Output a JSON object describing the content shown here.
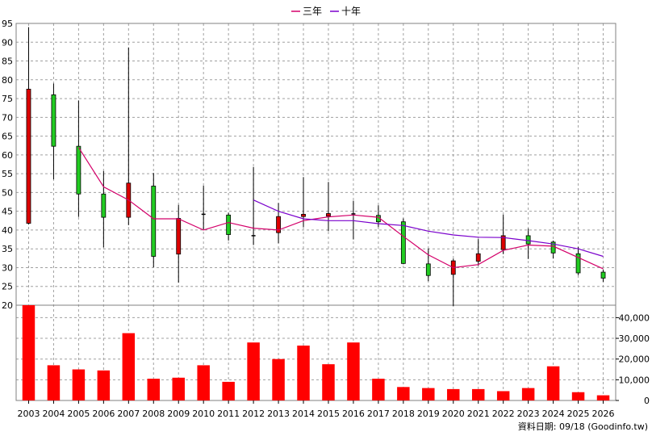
{
  "chart_data": {
    "type": "candlestick+bar",
    "legend": [
      {
        "name": "三年",
        "color": "#d4006a"
      },
      {
        "name": "十年",
        "color": "#7a00cc"
      }
    ],
    "legend_position": "top-center",
    "grid": true,
    "categories": [
      "2003",
      "2004",
      "2005",
      "2006",
      "2007",
      "2008",
      "2009",
      "2010",
      "2011",
      "2012",
      "2013",
      "2014",
      "2015",
      "2016",
      "2017",
      "2018",
      "2019",
      "2020",
      "2021",
      "2022",
      "2023",
      "2024",
      "2025",
      "2026"
    ],
    "price_axis": {
      "ylim": [
        20,
        95
      ],
      "ticks": [
        "20",
        "25",
        "30",
        "35",
        "40",
        "45",
        "50",
        "55",
        "60",
        "65",
        "70",
        "75",
        "80",
        "85",
        "90",
        "95"
      ]
    },
    "volume_axis": {
      "ylim": [
        0,
        46000
      ],
      "ticks": [
        {
          "value": 0,
          "label": "0"
        },
        {
          "value": 10000,
          "label": "10,000"
        },
        {
          "value": 20000,
          "label": "20,000"
        },
        {
          "value": 30000,
          "label": "30,000"
        },
        {
          "value": 40000,
          "label": "40,000"
        }
      ]
    },
    "candles": [
      {
        "year": "2003",
        "open": 41.8,
        "close": 77.5,
        "high": 94,
        "low": 41.5
      },
      {
        "year": "2004",
        "open": 76,
        "close": 62.3,
        "high": 79,
        "low": 53.5
      },
      {
        "year": "2005",
        "open": 62.3,
        "close": 49.6,
        "high": 74.5,
        "low": 43.5
      },
      {
        "year": "2006",
        "open": 49.6,
        "close": 43.4,
        "high": 55.7,
        "low": 35.4
      },
      {
        "year": "2007",
        "open": 43.4,
        "close": 52.5,
        "high": 88.6,
        "low": 41.3
      },
      {
        "year": "2008",
        "open": 51.7,
        "close": 33,
        "high": 55.2,
        "low": 30.1
      },
      {
        "year": "2009",
        "open": 33.6,
        "close": 43.1,
        "high": 46.7,
        "low": 26
      },
      {
        "year": "2010",
        "open": 44.2,
        "close": 44.2,
        "high": 51.8,
        "low": 40.2
      },
      {
        "year": "2011",
        "open": 44,
        "close": 38.8,
        "high": 44.6,
        "low": 37.2
      },
      {
        "year": "2012",
        "open": 38.5,
        "close": 38.5,
        "high": 56.8,
        "low": 36
      },
      {
        "year": "2013",
        "open": 39.3,
        "close": 43.6,
        "high": 47.2,
        "low": 36.5
      },
      {
        "year": "2014",
        "open": 43.6,
        "close": 44.2,
        "high": 54.1,
        "low": 40.8
      },
      {
        "year": "2015",
        "open": 43.7,
        "close": 44.4,
        "high": 52.8,
        "low": 39.7
      },
      {
        "year": "2016",
        "open": 44.3,
        "close": 44.3,
        "high": 47.8,
        "low": 37.5
      },
      {
        "year": "2017",
        "open": 43.9,
        "close": 42.2,
        "high": 46.6,
        "low": 40.8
      },
      {
        "year": "2018",
        "open": 42.2,
        "close": 31.1,
        "high": 43.1,
        "low": 30.9
      },
      {
        "year": "2019",
        "open": 31,
        "close": 27.9,
        "high": 35.1,
        "low": 26.4
      },
      {
        "year": "2020",
        "open": 28.2,
        "close": 31.8,
        "high": 32.4,
        "low": 19.8
      },
      {
        "year": "2021",
        "open": 31.7,
        "close": 33.7,
        "high": 37.6,
        "low": 30.5
      },
      {
        "year": "2022",
        "open": 34.8,
        "close": 38.5,
        "high": 44.1,
        "low": 33.6
      },
      {
        "year": "2023",
        "open": 38.5,
        "close": 36.3,
        "high": 40.4,
        "low": 32.3
      },
      {
        "year": "2024",
        "open": 36.8,
        "close": 33.9,
        "high": 37.2,
        "low": 32.4
      },
      {
        "year": "2025",
        "open": 33.7,
        "close": 28.6,
        "high": 35.5,
        "low": 28
      },
      {
        "year": "2026",
        "open": 28.8,
        "close": 27.2,
        "high": 29.5,
        "low": 26.2
      }
    ],
    "series": [
      {
        "name": "三年",
        "color": "#d4006a",
        "values": [
          null,
          null,
          62,
          51.5,
          48,
          43,
          43,
          40,
          42,
          40.5,
          40,
          42.5,
          43.5,
          44,
          43.4,
          38.3,
          33.4,
          30,
          30.8,
          34.6,
          36,
          35.7,
          32.7,
          29.7
        ]
      },
      {
        "name": "十年",
        "color": "#7a00cc",
        "values": [
          null,
          null,
          null,
          null,
          null,
          null,
          null,
          null,
          null,
          48,
          45,
          43,
          42.5,
          42.5,
          41.7,
          41.2,
          39.7,
          38.7,
          38.1,
          38,
          37.2,
          36.3,
          35,
          33
        ]
      }
    ],
    "volume": [
      46000,
      17000,
      15000,
      14500,
      32500,
      10500,
      11000,
      17000,
      9000,
      28000,
      20000,
      26500,
      17500,
      28000,
      10500,
      6500,
      6000,
      5500,
      5500,
      4500,
      6000,
      16500,
      4000,
      2500
    ],
    "candle_colors": {
      "up": "#dd0000",
      "down": "#22cc22",
      "outline": "#000000"
    },
    "volume_color": "#ff0000",
    "source_note": "資料日期: 09/18  (Goodinfo.tw)"
  }
}
